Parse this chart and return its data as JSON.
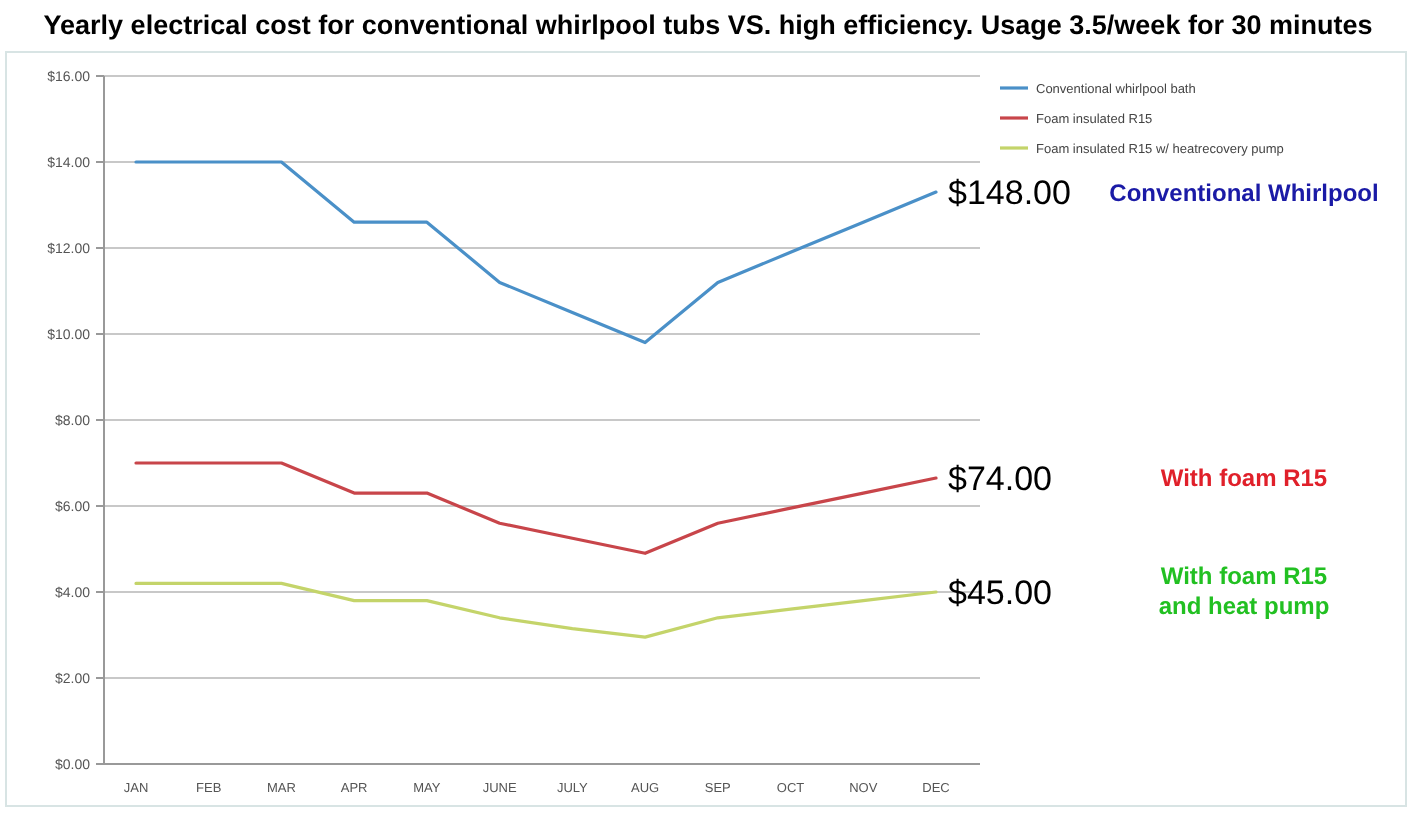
{
  "chart_data": {
    "type": "line",
    "title": "Yearly electrical cost for conventional whirlpool tubs VS. high efficiency.  Usage 3.5/week for 30 minutes",
    "categories": [
      "JAN",
      "FEB",
      "MAR",
      "APR",
      "MAY",
      "JUNE",
      "JULY",
      "AUG",
      "SEP",
      "OCT",
      "NOV",
      "DEC"
    ],
    "series": [
      {
        "name": "Conventional whirlpool bath",
        "color": "#4a90c8",
        "values": [
          14,
          14,
          14,
          12.6,
          12.6,
          11.2,
          10.5,
          9.8,
          11.2,
          11.9,
          12.6,
          13.3
        ]
      },
      {
        "name": "Foam insulated R15",
        "color": "#c8454a",
        "values": [
          7,
          7,
          7,
          6.3,
          6.3,
          5.6,
          5.25,
          4.9,
          5.6,
          5.95,
          6.3,
          6.65
        ]
      },
      {
        "name": "Foam insulated R15 w/ heatrecovery pump",
        "color": "#c4d46a",
        "values": [
          4.2,
          4.2,
          4.2,
          3.8,
          3.8,
          3.4,
          3.15,
          2.95,
          3.4,
          3.6,
          3.8,
          4
        ]
      }
    ],
    "ylim": [
      0,
      16
    ],
    "yticks": [
      {
        "value": 0,
        "label": "$0.00"
      },
      {
        "value": 2,
        "label": "$2.00"
      },
      {
        "value": 4,
        "label": "$4.00"
      },
      {
        "value": 6,
        "label": "$6.00"
      },
      {
        "value": 8,
        "label": "$8.00"
      },
      {
        "value": 10,
        "label": "$10.00"
      },
      {
        "value": 12,
        "label": "$12.00"
      },
      {
        "value": 14,
        "label": "$14.00"
      },
      {
        "value": 16,
        "label": "$16.00"
      }
    ],
    "grid": "y",
    "legend": "top right",
    "marker": "none",
    "line_style": "solid",
    "annotations": [
      {
        "text": "$148.00",
        "x": "DEC",
        "y": 13.3
      },
      "Conventional Whirlpool",
      {
        "text": "$74.00",
        "x": "DEC",
        "y": 6.65
      },
      "With foam R15",
      {
        "text": "$45.00",
        "x": "DEC",
        "y": 4
      },
      "With foam R15 and heat pump"
    ]
  }
}
